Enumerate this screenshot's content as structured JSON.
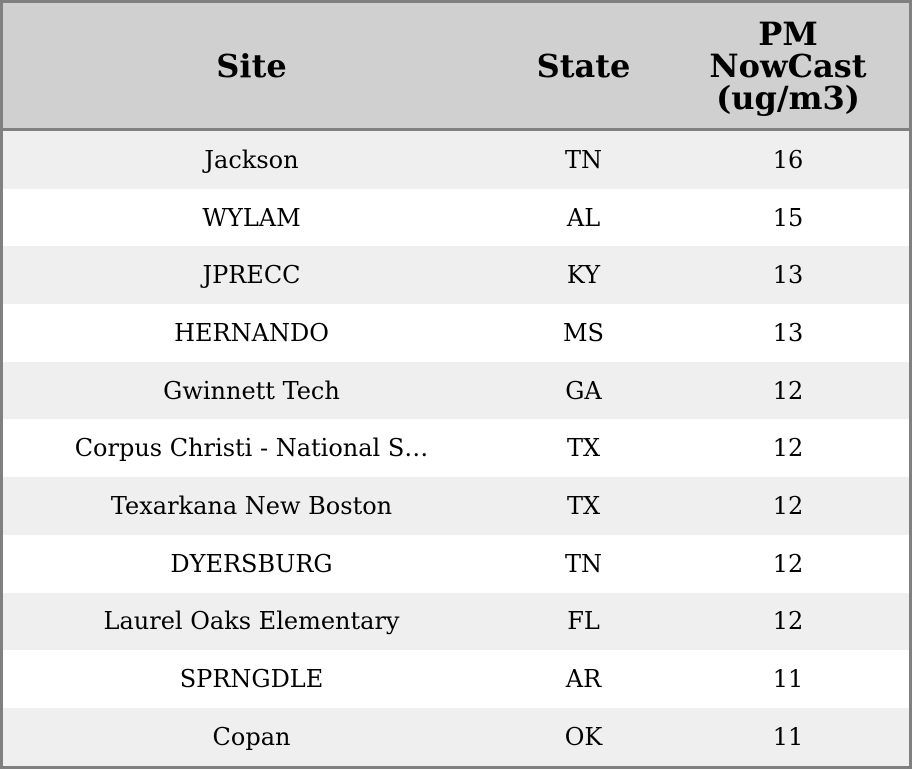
{
  "table": {
    "headers": {
      "site": "Site",
      "state": "State",
      "pm": "PM NowCast (ug/m3)"
    },
    "rows": [
      {
        "site": "Jackson",
        "state": "TN",
        "pm": "16"
      },
      {
        "site": "WYLAM",
        "state": "AL",
        "pm": "15"
      },
      {
        "site": "JPRECC",
        "state": "KY",
        "pm": "13"
      },
      {
        "site": "HERNANDO",
        "state": "MS",
        "pm": "13"
      },
      {
        "site": "Gwinnett Tech",
        "state": "GA",
        "pm": "12"
      },
      {
        "site": "Corpus Christi - National S…",
        "state": "TX",
        "pm": "12"
      },
      {
        "site": "Texarkana New Boston",
        "state": "TX",
        "pm": "12"
      },
      {
        "site": "DYERSBURG",
        "state": "TN",
        "pm": "12"
      },
      {
        "site": "Laurel Oaks Elementary",
        "state": "FL",
        "pm": "12"
      },
      {
        "site": "SPRNGDLE",
        "state": "AR",
        "pm": "11"
      },
      {
        "site": "Copan",
        "state": "OK",
        "pm": "11"
      }
    ]
  }
}
